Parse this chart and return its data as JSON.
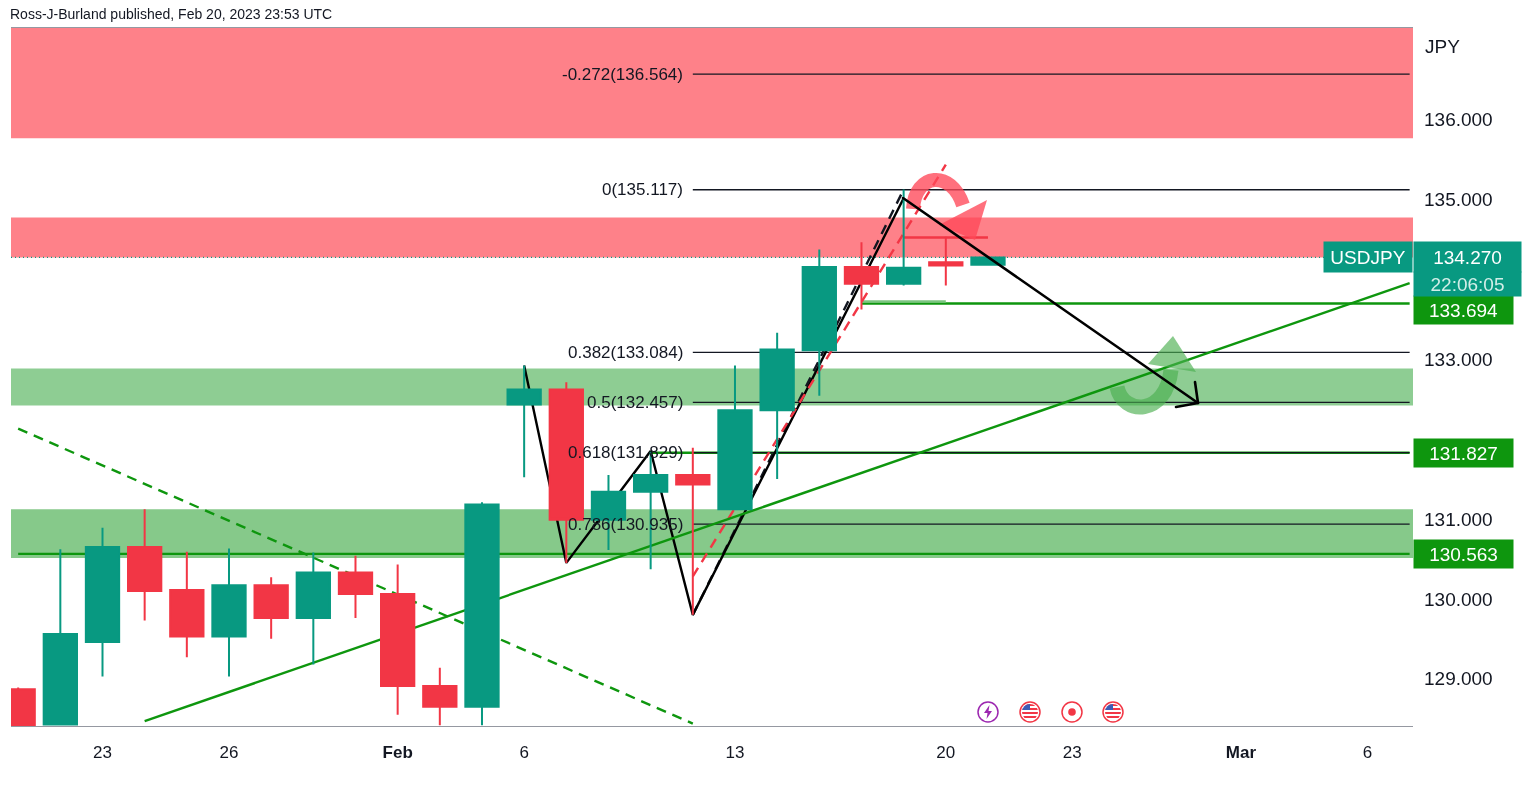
{
  "chart_data": {
    "type": "candlestick",
    "title": "Ross-J-Burland published, Feb 20, 2023 23:53 UTC",
    "ylabel": "JPY",
    "categories": [
      null,
      null,
      "23",
      null,
      null,
      "26",
      null,
      null,
      null,
      "Feb",
      null,
      null,
      "6",
      null,
      null,
      null,
      null,
      "13",
      null,
      null,
      null,
      null,
      "20",
      null,
      null,
      "23",
      null,
      null,
      null,
      "Mar",
      null,
      null,
      "6",
      null
    ],
    "ylim": [
      128.41,
      137.14
    ],
    "yticks": [
      {
        "value": 129,
        "label": "129.000"
      },
      {
        "value": 130,
        "label": "130.000"
      },
      {
        "value": 131,
        "label": "131.000"
      },
      {
        "value": 133,
        "label": "133.000"
      },
      {
        "value": 135,
        "label": "135.000"
      },
      {
        "value": 136,
        "label": "136.000"
      }
    ],
    "series": [
      {
        "name": "USDJPY",
        "ohlc": [
          [
            128.87,
            128.89,
            128.42,
            128.42
          ],
          [
            128.43,
            130.62,
            128.42,
            129.56
          ],
          [
            129.46,
            130.89,
            129.03,
            130.65
          ],
          [
            130.65,
            131.12,
            129.73,
            130.1
          ],
          [
            130.11,
            130.59,
            129.27,
            129.53
          ],
          [
            129.53,
            130.63,
            129.03,
            130.17
          ],
          [
            130.17,
            130.27,
            129.5,
            129.76
          ],
          [
            129.76,
            130.58,
            129.18,
            130.33
          ],
          [
            130.33,
            130.54,
            129.76,
            130.06
          ],
          [
            130.06,
            130.43,
            128.55,
            128.91
          ],
          [
            128.91,
            129.14,
            128.42,
            128.65
          ],
          [
            128.65,
            131.21,
            128.42,
            131.18
          ],
          [
            132.43,
            132.92,
            131.52,
            132.62
          ],
          [
            132.62,
            132.71,
            130.45,
            130.99
          ],
          [
            130.99,
            131.55,
            130.61,
            131.34
          ],
          [
            131.34,
            131.84,
            130.37,
            131.55
          ],
          [
            131.55,
            131.89,
            129.8,
            131.43
          ],
          [
            131.12,
            132.92,
            131.12,
            132.36
          ],
          [
            132.36,
            133.33,
            131.5,
            133.12
          ],
          [
            133.11,
            134.37,
            132.54,
            134.15
          ],
          [
            134.15,
            134.46,
            133.62,
            133.94
          ],
          [
            133.94,
            135.12,
            133.92,
            134.14
          ],
          [
            134.21,
            134.53,
            133.92,
            134.17
          ],
          [
            134.18,
            134.27,
            134.18,
            134.27
          ],
          null,
          null,
          null,
          null,
          null,
          null,
          null,
          null,
          null,
          null
        ],
        "colors": [
          "#f23645",
          "#089981",
          "#089981",
          "#f23645",
          "#f23645",
          "#089981",
          "#f23645",
          "#089981",
          "#f23645",
          "#f23645",
          "#f23645",
          "#089981",
          "#089981",
          "#f23645",
          "#089981",
          "#089981",
          "#f23645",
          "#089981",
          "#089981",
          "#089981",
          "#f23645",
          "#089981",
          "#f23645",
          "#089981",
          null,
          null,
          null,
          null,
          null,
          null,
          null,
          null,
          null,
          null
        ]
      },
      {
        "type": "line",
        "color": "#0e960e",
        "values": [
          null,
          null,
          null,
          null,
          null,
          null,
          null,
          null,
          null,
          null,
          null,
          null,
          null,
          null,
          null,
          null,
          null,
          null,
          null,
          null,
          133.694,
          null,
          null,
          null,
          null,
          null,
          null,
          null,
          null,
          null,
          null,
          null,
          null,
          133.694
        ],
        "value_labels": [
          null,
          null,
          null,
          null,
          null,
          null,
          null,
          null,
          null,
          null,
          null,
          null,
          null,
          null,
          null,
          null,
          null,
          null,
          null,
          null,
          null,
          null,
          null,
          null,
          null,
          null,
          null,
          null,
          null,
          null,
          null,
          null,
          null,
          "133.694"
        ]
      },
      {
        "type": "line",
        "color": "#0e960e",
        "values": [
          null,
          null,
          null,
          null,
          null,
          null,
          null,
          null,
          null,
          null,
          null,
          null,
          null,
          null,
          null,
          131.827,
          null,
          null,
          null,
          null,
          null,
          null,
          null,
          null,
          null,
          null,
          null,
          null,
          null,
          null,
          null,
          null,
          null,
          131.827
        ],
        "value_labels": [
          null,
          null,
          null,
          null,
          null,
          null,
          null,
          null,
          null,
          null,
          null,
          null,
          null,
          null,
          null,
          null,
          null,
          null,
          null,
          null,
          null,
          null,
          null,
          null,
          null,
          null,
          null,
          null,
          null,
          null,
          null,
          null,
          null,
          "131.827"
        ]
      },
      {
        "type": "line",
        "color": "#0e960e",
        "values": [
          130.563,
          null,
          null,
          null,
          null,
          null,
          null,
          null,
          null,
          null,
          null,
          null,
          null,
          null,
          null,
          null,
          null,
          null,
          null,
          null,
          null,
          null,
          null,
          null,
          null,
          null,
          null,
          null,
          null,
          null,
          null,
          null,
          null,
          130.563
        ],
        "value_labels": [
          null,
          null,
          null,
          null,
          null,
          null,
          null,
          null,
          null,
          null,
          null,
          null,
          null,
          null,
          null,
          null,
          null,
          null,
          null,
          null,
          null,
          null,
          null,
          null,
          null,
          null,
          null,
          null,
          null,
          null,
          null,
          null,
          null,
          "130.563"
        ]
      },
      {
        "type": "line",
        "color": "#7cc680",
        "values": [
          null,
          null,
          null,
          null,
          null,
          null,
          null,
          null,
          null,
          null,
          null,
          null,
          null,
          null,
          null,
          null,
          null,
          null,
          null,
          null,
          133.72,
          null,
          133.72,
          null,
          null,
          null,
          null,
          null,
          null,
          null,
          null,
          null,
          null,
          null
        ]
      },
      {
        "type": "line",
        "color": "#f23645",
        "values": [
          null,
          null,
          null,
          null,
          null,
          null,
          null,
          null,
          null,
          null,
          null,
          null,
          null,
          null,
          null,
          null,
          null,
          null,
          null,
          null,
          null,
          134.52,
          null,
          134.52,
          null,
          null,
          null,
          null,
          null,
          null,
          null,
          null,
          null,
          null
        ]
      },
      {
        "type": "line",
        "name": "-0.272(136.564)",
        "color": "#131722",
        "values": [
          null,
          null,
          null,
          null,
          null,
          null,
          null,
          null,
          null,
          null,
          null,
          null,
          null,
          null,
          null,
          null,
          136.564,
          null,
          null,
          null,
          null,
          null,
          null,
          null,
          null,
          null,
          null,
          null,
          null,
          null,
          null,
          null,
          null,
          136.564
        ]
      },
      {
        "type": "line",
        "name": "0(135.117)",
        "color": "#131722",
        "values": [
          null,
          null,
          null,
          null,
          null,
          null,
          null,
          null,
          null,
          null,
          null,
          null,
          null,
          null,
          null,
          null,
          135.117,
          null,
          null,
          null,
          null,
          null,
          null,
          null,
          null,
          null,
          null,
          null,
          null,
          null,
          null,
          null,
          null,
          135.117
        ]
      },
      {
        "type": "line",
        "name": "0.382(133.084)",
        "color": "#131722",
        "values": [
          null,
          null,
          null,
          null,
          null,
          null,
          null,
          null,
          null,
          null,
          null,
          null,
          null,
          null,
          null,
          null,
          133.084,
          null,
          null,
          null,
          null,
          null,
          null,
          null,
          null,
          null,
          null,
          null,
          null,
          null,
          null,
          null,
          null,
          133.084
        ]
      },
      {
        "type": "line",
        "name": "0.5(132.457)",
        "color": "#131722",
        "values": [
          null,
          null,
          null,
          null,
          null,
          null,
          null,
          null,
          null,
          null,
          null,
          null,
          null,
          null,
          null,
          null,
          132.457,
          null,
          null,
          null,
          null,
          null,
          null,
          null,
          null,
          null,
          null,
          null,
          null,
          null,
          null,
          null,
          null,
          132.457
        ]
      },
      {
        "type": "line",
        "name": "0.618(131.829)",
        "color": "#131722",
        "values": [
          null,
          null,
          null,
          null,
          null,
          null,
          null,
          null,
          null,
          null,
          null,
          null,
          null,
          null,
          null,
          null,
          131.829,
          null,
          null,
          null,
          null,
          null,
          null,
          null,
          null,
          null,
          null,
          null,
          null,
          null,
          null,
          null,
          null,
          131.829
        ]
      },
      {
        "type": "line",
        "name": "0.786(130.935)",
        "color": "#131722",
        "values": [
          null,
          null,
          null,
          null,
          null,
          null,
          null,
          null,
          null,
          null,
          null,
          null,
          null,
          null,
          null,
          null,
          130.935,
          null,
          null,
          null,
          null,
          null,
          null,
          null,
          null,
          null,
          null,
          null,
          null,
          null,
          null,
          null,
          null,
          130.935
        ]
      },
      {
        "type": "line",
        "color": "#131722",
        "line_style": "dashed",
        "values": [
          null,
          null,
          null,
          null,
          null,
          null,
          null,
          null,
          null,
          null,
          null,
          null,
          null,
          null,
          null,
          null,
          129.8,
          null,
          null,
          null,
          null,
          135.12,
          null,
          null,
          null,
          null,
          null,
          null,
          null,
          null,
          null,
          null,
          null,
          null
        ]
      },
      {
        "type": "line",
        "color": "#000000",
        "values": [
          null,
          null,
          null,
          null,
          null,
          null,
          null,
          null,
          null,
          null,
          null,
          null,
          132.92,
          130.45,
          null,
          131.85,
          129.8,
          null,
          null,
          null,
          null,
          135.01,
          null,
          null,
          null,
          null,
          null,
          null,
          null,
          null,
          null,
          null,
          null,
          null
        ]
      },
      {
        "type": "line",
        "color": "#f23645",
        "line_style": "dashed",
        "values": [
          null,
          null,
          null,
          null,
          null,
          null,
          null,
          null,
          null,
          null,
          null,
          null,
          null,
          null,
          null,
          null,
          130.28,
          null,
          null,
          null,
          null,
          null,
          135.43,
          null,
          null,
          null,
          null,
          null,
          null,
          null,
          null,
          null,
          null,
          null
        ]
      },
      {
        "type": "line",
        "color": "#0e960e",
        "line_style": "dashed",
        "values": [
          132.13,
          null,
          null,
          null,
          null,
          null,
          null,
          null,
          null,
          null,
          null,
          null,
          null,
          null,
          null,
          null,
          128.44,
          null,
          null,
          null,
          null,
          null,
          null,
          null,
          null,
          null,
          null,
          null,
          null,
          null,
          null,
          null,
          null,
          null
        ]
      },
      {
        "type": "line",
        "color": "#0e960e",
        "values": [
          null,
          null,
          null,
          128.47,
          null,
          null,
          null,
          null,
          null,
          null,
          null,
          null,
          null,
          null,
          null,
          null,
          null,
          null,
          null,
          null,
          null,
          null,
          null,
          null,
          null,
          null,
          null,
          null,
          null,
          null,
          null,
          null,
          null,
          133.95
        ]
      }
    ],
    "ref_lines": [
      {
        "axis": "y",
        "value": 134.27,
        "label": "134.270",
        "color": "#089981",
        "line_style": "dotted"
      }
    ],
    "bands": [
      {
        "axis": "y",
        "from": 135.76,
        "to": 137.14,
        "color": "#fe8189"
      },
      {
        "axis": "y",
        "from": 134.27,
        "to": 134.77,
        "color": "#fe8189"
      },
      {
        "axis": "y",
        "from": 132.42,
        "to": 132.88,
        "color": "#8ecd93"
      },
      {
        "axis": "y",
        "from": 130.51,
        "to": 131.12,
        "color": "#86c98a"
      }
    ],
    "annotations": [
      "22:06:05"
    ]
  }
}
